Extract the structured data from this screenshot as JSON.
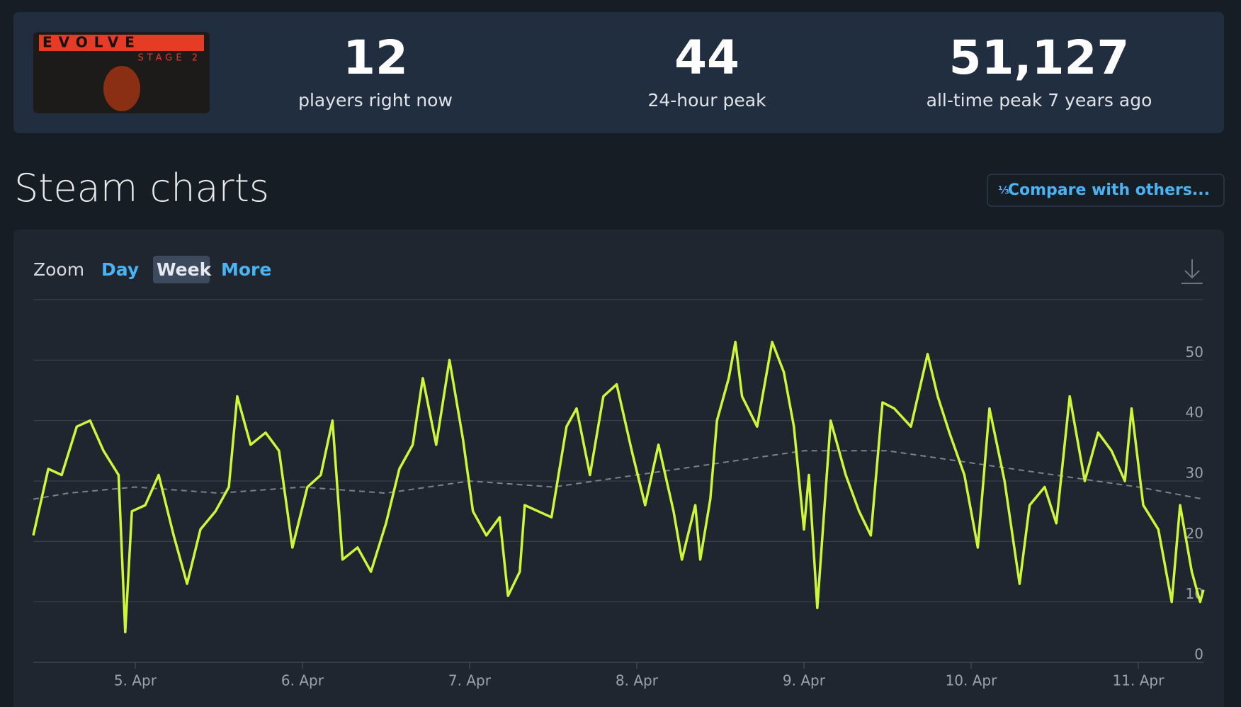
{
  "header": {
    "logo": {
      "title": "EVOLVE",
      "subtitle": "STAGE 2"
    },
    "stats": [
      {
        "value": "12",
        "label": "players right now"
      },
      {
        "value": "44",
        "label": "24-hour peak"
      },
      {
        "value": "51,127",
        "label": "all-time peak 7 years ago"
      }
    ]
  },
  "section_title": "Steam charts",
  "compare_button": "Compare with others...",
  "zoom": {
    "label": "Zoom",
    "options": [
      "Day",
      "Week",
      "More"
    ],
    "active": 1
  },
  "chart_data": {
    "type": "line",
    "xlim": [
      4.39,
      11.39
    ],
    "ylim": [
      0,
      60
    ],
    "xticks": [
      {
        "value": 5,
        "label": "5. Apr"
      },
      {
        "value": 6,
        "label": "6. Apr"
      },
      {
        "value": 7,
        "label": "7. Apr"
      },
      {
        "value": 8,
        "label": "8. Apr"
      },
      {
        "value": 9,
        "label": "9. Apr"
      },
      {
        "value": 10,
        "label": "10. Apr"
      },
      {
        "value": 11,
        "label": "11. Apr"
      }
    ],
    "yticks": [
      0,
      10,
      20,
      30,
      40,
      50
    ],
    "grid": true,
    "series": [
      {
        "color": "#ccf73a",
        "style": "solid",
        "x": [
          4.39,
          4.48,
          4.56,
          4.65,
          4.73,
          4.81,
          4.9,
          4.94,
          4.98,
          5.06,
          5.14,
          5.23,
          5.31,
          5.39,
          5.48,
          5.56,
          5.61,
          5.69,
          5.78,
          5.86,
          5.94,
          6.03,
          6.11,
          6.18,
          6.24,
          6.33,
          6.41,
          6.5,
          6.58,
          6.66,
          6.72,
          6.8,
          6.88,
          6.96,
          7.02,
          7.1,
          7.18,
          7.23,
          7.3,
          7.33,
          7.41,
          7.49,
          7.58,
          7.64,
          7.72,
          7.8,
          7.88,
          7.97,
          8.05,
          8.13,
          8.22,
          8.27,
          8.35,
          8.38,
          8.44,
          8.48,
          8.55,
          8.59,
          8.63,
          8.72,
          8.81,
          8.88,
          8.94,
          9.0,
          9.03,
          9.08,
          9.16,
          9.25,
          9.33,
          9.4,
          9.47,
          9.54,
          9.64,
          9.74,
          9.8,
          9.87,
          9.96,
          10.04,
          10.11,
          10.2,
          10.29,
          10.35,
          10.44,
          10.51,
          10.59,
          10.68,
          10.76,
          10.84,
          10.92,
          10.96,
          11.03,
          11.12,
          11.2,
          11.25,
          11.32,
          11.37,
          11.39
        ],
        "values": [
          21,
          32,
          31,
          39,
          40,
          35,
          31,
          5,
          25,
          26,
          31,
          21,
          13,
          22,
          25,
          29,
          44,
          36,
          38,
          35,
          19,
          29,
          31,
          40,
          17,
          19,
          15,
          23,
          32,
          36,
          47,
          36,
          50,
          37,
          25,
          21,
          24,
          11,
          15,
          26,
          25,
          24,
          39,
          42,
          31,
          44,
          46,
          35,
          26,
          36,
          25,
          17,
          26,
          17,
          27,
          40,
          47,
          53,
          44,
          39,
          53,
          48,
          39,
          22,
          31,
          9,
          40,
          31,
          25,
          21,
          43,
          42,
          39,
          51,
          44,
          38,
          31,
          19,
          42,
          30,
          13,
          26,
          29,
          23,
          44,
          30,
          38,
          35,
          30,
          42,
          26,
          22,
          10,
          26,
          15,
          10,
          12
        ]
      },
      {
        "color": "#7a828c",
        "style": "dashed",
        "x": [
          4.39,
          4.6,
          5.0,
          5.5,
          6.0,
          6.5,
          7.0,
          7.5,
          8.0,
          8.5,
          9.0,
          9.5,
          10.0,
          10.5,
          11.0,
          11.39
        ],
        "values": [
          27,
          28,
          29,
          28,
          29,
          28,
          30,
          29,
          31,
          33,
          35,
          35,
          33,
          31,
          29,
          27
        ]
      }
    ]
  }
}
